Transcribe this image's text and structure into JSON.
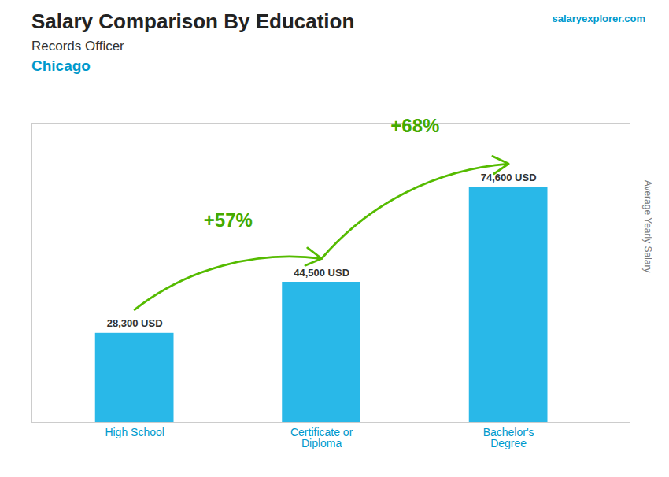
{
  "chart_data": {
    "type": "bar",
    "title": "Salary Comparison By Education",
    "subtitle": [
      "Records Officer",
      "Chicago"
    ],
    "ylabel": "Average Yearly Salary",
    "categories": [
      "High School",
      "Certificate or\nDiploma",
      "Bachelor's\nDegree"
    ],
    "values": [
      28300,
      44500,
      74600
    ],
    "value_labels": [
      "28,300 USD",
      "44,500 USD",
      "74,600 USD"
    ],
    "data_labels": true,
    "color": "#29b8e8",
    "ylim": [
      0,
      95000
    ],
    "tick_labels": "x",
    "grid": false,
    "annotations": [
      {
        "text": "+57%",
        "from": "High School",
        "to": "Certificate or\nDiploma"
      },
      {
        "text": "+68%",
        "from": "Certificate or\nDiploma",
        "to": "Bachelor's\nDegree"
      },
      {
        "text": "salaryexplorer.com"
      }
    ]
  }
}
